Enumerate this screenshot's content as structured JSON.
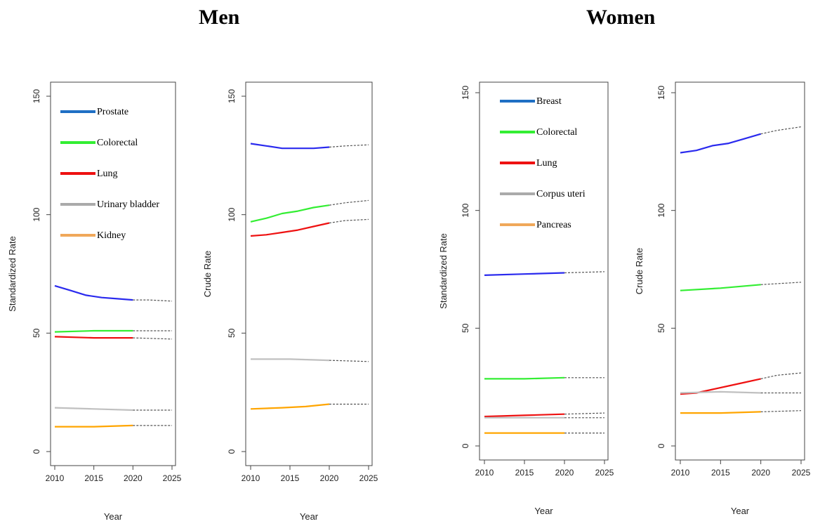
{
  "titles": {
    "men": "Men",
    "women": "Women"
  },
  "chart_data": [
    {
      "type": "line",
      "group": "Men",
      "ylabel": "Standardized Rate",
      "xlabel": "Year",
      "xlim": [
        2010,
        2025
      ],
      "ylim": [
        0,
        150
      ],
      "xticks": [
        2010,
        2015,
        2020,
        2025
      ],
      "yticks": [
        0,
        50,
        100,
        150
      ],
      "legend": [
        "Prostate",
        "Colorectal",
        "Lung",
        "Urinary bladder",
        "Kidney"
      ],
      "series": [
        {
          "name": "Prostate",
          "color": "#2a2aee",
          "observed": {
            "x": [
              2010,
              2012,
              2014,
              2016,
              2018,
              2020
            ],
            "y": [
              70,
              68,
              66,
              65,
              64.5,
              64
            ]
          },
          "projected": {
            "x": [
              2020,
              2022,
              2025
            ],
            "y": [
              64,
              64,
              63.5
            ]
          }
        },
        {
          "name": "Colorectal",
          "color": "#33ee33",
          "observed": {
            "x": [
              2010,
              2015,
              2020
            ],
            "y": [
              50.5,
              51,
              51
            ]
          },
          "projected": {
            "x": [
              2020,
              2025
            ],
            "y": [
              51,
              51
            ]
          }
        },
        {
          "name": "Lung",
          "color": "#ee1111",
          "observed": {
            "x": [
              2010,
              2015,
              2020
            ],
            "y": [
              48.5,
              48,
              48
            ]
          },
          "projected": {
            "x": [
              2020,
              2025
            ],
            "y": [
              48,
              47.5
            ]
          }
        },
        {
          "name": "Urinary bladder",
          "color": "#c0c0c0",
          "observed": {
            "x": [
              2010,
              2015,
              2020
            ],
            "y": [
              18.5,
              18,
              17.5
            ]
          },
          "projected": {
            "x": [
              2020,
              2025
            ],
            "y": [
              17.5,
              17.5
            ]
          }
        },
        {
          "name": "Kidney",
          "color": "#ffa500",
          "observed": {
            "x": [
              2010,
              2015,
              2020
            ],
            "y": [
              10.5,
              10.5,
              11
            ]
          },
          "projected": {
            "x": [
              2020,
              2025
            ],
            "y": [
              11,
              11
            ]
          }
        }
      ]
    },
    {
      "type": "line",
      "group": "Men",
      "ylabel": "Crude Rate",
      "xlabel": "Year",
      "xlim": [
        2010,
        2025
      ],
      "ylim": [
        0,
        150
      ],
      "xticks": [
        2010,
        2015,
        2020,
        2025
      ],
      "yticks": [
        0,
        50,
        100,
        150
      ],
      "series": [
        {
          "name": "Prostate",
          "color": "#2a2aee",
          "observed": {
            "x": [
              2010,
              2012,
              2014,
              2016,
              2018,
              2020
            ],
            "y": [
              130,
              129,
              128,
              128,
              128,
              128.5
            ]
          },
          "projected": {
            "x": [
              2020,
              2022,
              2025
            ],
            "y": [
              128.5,
              129,
              129.5
            ]
          }
        },
        {
          "name": "Colorectal",
          "color": "#33ee33",
          "observed": {
            "x": [
              2010,
              2012,
              2014,
              2016,
              2018,
              2020
            ],
            "y": [
              97,
              98.5,
              100.5,
              101.5,
              103,
              104
            ]
          },
          "projected": {
            "x": [
              2020,
              2022,
              2025
            ],
            "y": [
              104,
              105,
              106
            ]
          }
        },
        {
          "name": "Lung",
          "color": "#ee1111",
          "observed": {
            "x": [
              2010,
              2012,
              2014,
              2016,
              2018,
              2020
            ],
            "y": [
              91,
              91.5,
              92.5,
              93.5,
              95,
              96.5
            ]
          },
          "projected": {
            "x": [
              2020,
              2022,
              2025
            ],
            "y": [
              96.5,
              97.5,
              98
            ]
          }
        },
        {
          "name": "Urinary bladder",
          "color": "#c0c0c0",
          "observed": {
            "x": [
              2010,
              2015,
              2020
            ],
            "y": [
              39,
              39,
              38.5
            ]
          },
          "projected": {
            "x": [
              2020,
              2025
            ],
            "y": [
              38.5,
              38
            ]
          }
        },
        {
          "name": "Kidney",
          "color": "#ffa500",
          "observed": {
            "x": [
              2010,
              2014,
              2017,
              2020
            ],
            "y": [
              18,
              18.5,
              19,
              20
            ]
          },
          "projected": {
            "x": [
              2020,
              2025
            ],
            "y": [
              20,
              20
            ]
          }
        }
      ]
    },
    {
      "type": "line",
      "group": "Women",
      "ylabel": "Standardized Rate",
      "xlabel": "Year",
      "xlim": [
        2010,
        2025
      ],
      "ylim": [
        0,
        150
      ],
      "xticks": [
        2010,
        2015,
        2020,
        2025
      ],
      "yticks": [
        0,
        50,
        100,
        150
      ],
      "legend": [
        "Breast",
        "Colorectal",
        "Lung",
        "Corpus uteri",
        "Pancreas"
      ],
      "series": [
        {
          "name": "Breast",
          "color": "#2a2aee",
          "observed": {
            "x": [
              2010,
              2015,
              2020
            ],
            "y": [
              72.5,
              73,
              73.5
            ]
          },
          "projected": {
            "x": [
              2020,
              2025
            ],
            "y": [
              73.5,
              74
            ]
          }
        },
        {
          "name": "Colorectal",
          "color": "#33ee33",
          "observed": {
            "x": [
              2010,
              2015,
              2020
            ],
            "y": [
              28.5,
              28.5,
              29
            ]
          },
          "projected": {
            "x": [
              2020,
              2025
            ],
            "y": [
              29,
              29
            ]
          }
        },
        {
          "name": "Lung",
          "color": "#ee1111",
          "observed": {
            "x": [
              2010,
              2015,
              2020
            ],
            "y": [
              12.5,
              13,
              13.5
            ]
          },
          "projected": {
            "x": [
              2020,
              2025
            ],
            "y": [
              13.5,
              14
            ]
          }
        },
        {
          "name": "Corpus uteri",
          "color": "#c0c0c0",
          "observed": {
            "x": [
              2010,
              2015,
              2020
            ],
            "y": [
              12,
              12,
              12
            ]
          },
          "projected": {
            "x": [
              2020,
              2025
            ],
            "y": [
              12,
              12
            ]
          }
        },
        {
          "name": "Pancreas",
          "color": "#ffa500",
          "observed": {
            "x": [
              2010,
              2015,
              2020
            ],
            "y": [
              5.5,
              5.5,
              5.5
            ]
          },
          "projected": {
            "x": [
              2020,
              2025
            ],
            "y": [
              5.5,
              5.5
            ]
          }
        }
      ]
    },
    {
      "type": "line",
      "group": "Women",
      "ylabel": "Crude Rate",
      "xlabel": "Year",
      "xlim": [
        2010,
        2025
      ],
      "ylim": [
        0,
        150
      ],
      "xticks": [
        2010,
        2015,
        2020,
        2025
      ],
      "yticks": [
        0,
        50,
        100,
        150
      ],
      "series": [
        {
          "name": "Breast",
          "color": "#2a2aee",
          "observed": {
            "x": [
              2010,
              2012,
              2014,
              2016,
              2018,
              2020
            ],
            "y": [
              124.5,
              125.5,
              127.5,
              128.5,
              130.5,
              132.5
            ]
          },
          "projected": {
            "x": [
              2020,
              2022,
              2024,
              2025
            ],
            "y": [
              132.5,
              134,
              135,
              135.5
            ]
          }
        },
        {
          "name": "Colorectal",
          "color": "#33ee33",
          "observed": {
            "x": [
              2010,
              2015,
              2020
            ],
            "y": [
              66,
              67,
              68.5
            ]
          },
          "projected": {
            "x": [
              2020,
              2025
            ],
            "y": [
              68.5,
              69.5
            ]
          }
        },
        {
          "name": "Lung",
          "color": "#ee1111",
          "observed": {
            "x": [
              2010,
              2012,
              2014,
              2016,
              2018,
              2020
            ],
            "y": [
              22,
              22.5,
              24,
              25.5,
              27,
              28.5
            ]
          },
          "projected": {
            "x": [
              2020,
              2022,
              2025
            ],
            "y": [
              28.5,
              30,
              31
            ]
          }
        },
        {
          "name": "Corpus uteri",
          "color": "#c0c0c0",
          "observed": {
            "x": [
              2010,
              2015,
              2020
            ],
            "y": [
              22.5,
              23,
              22.5
            ]
          },
          "projected": {
            "x": [
              2020,
              2025
            ],
            "y": [
              22.5,
              22.5
            ]
          }
        },
        {
          "name": "Pancreas",
          "color": "#ffa500",
          "observed": {
            "x": [
              2010,
              2015,
              2020
            ],
            "y": [
              14,
              14,
              14.5
            ]
          },
          "projected": {
            "x": [
              2020,
              2025
            ],
            "y": [
              14.5,
              15
            ]
          }
        }
      ]
    }
  ]
}
